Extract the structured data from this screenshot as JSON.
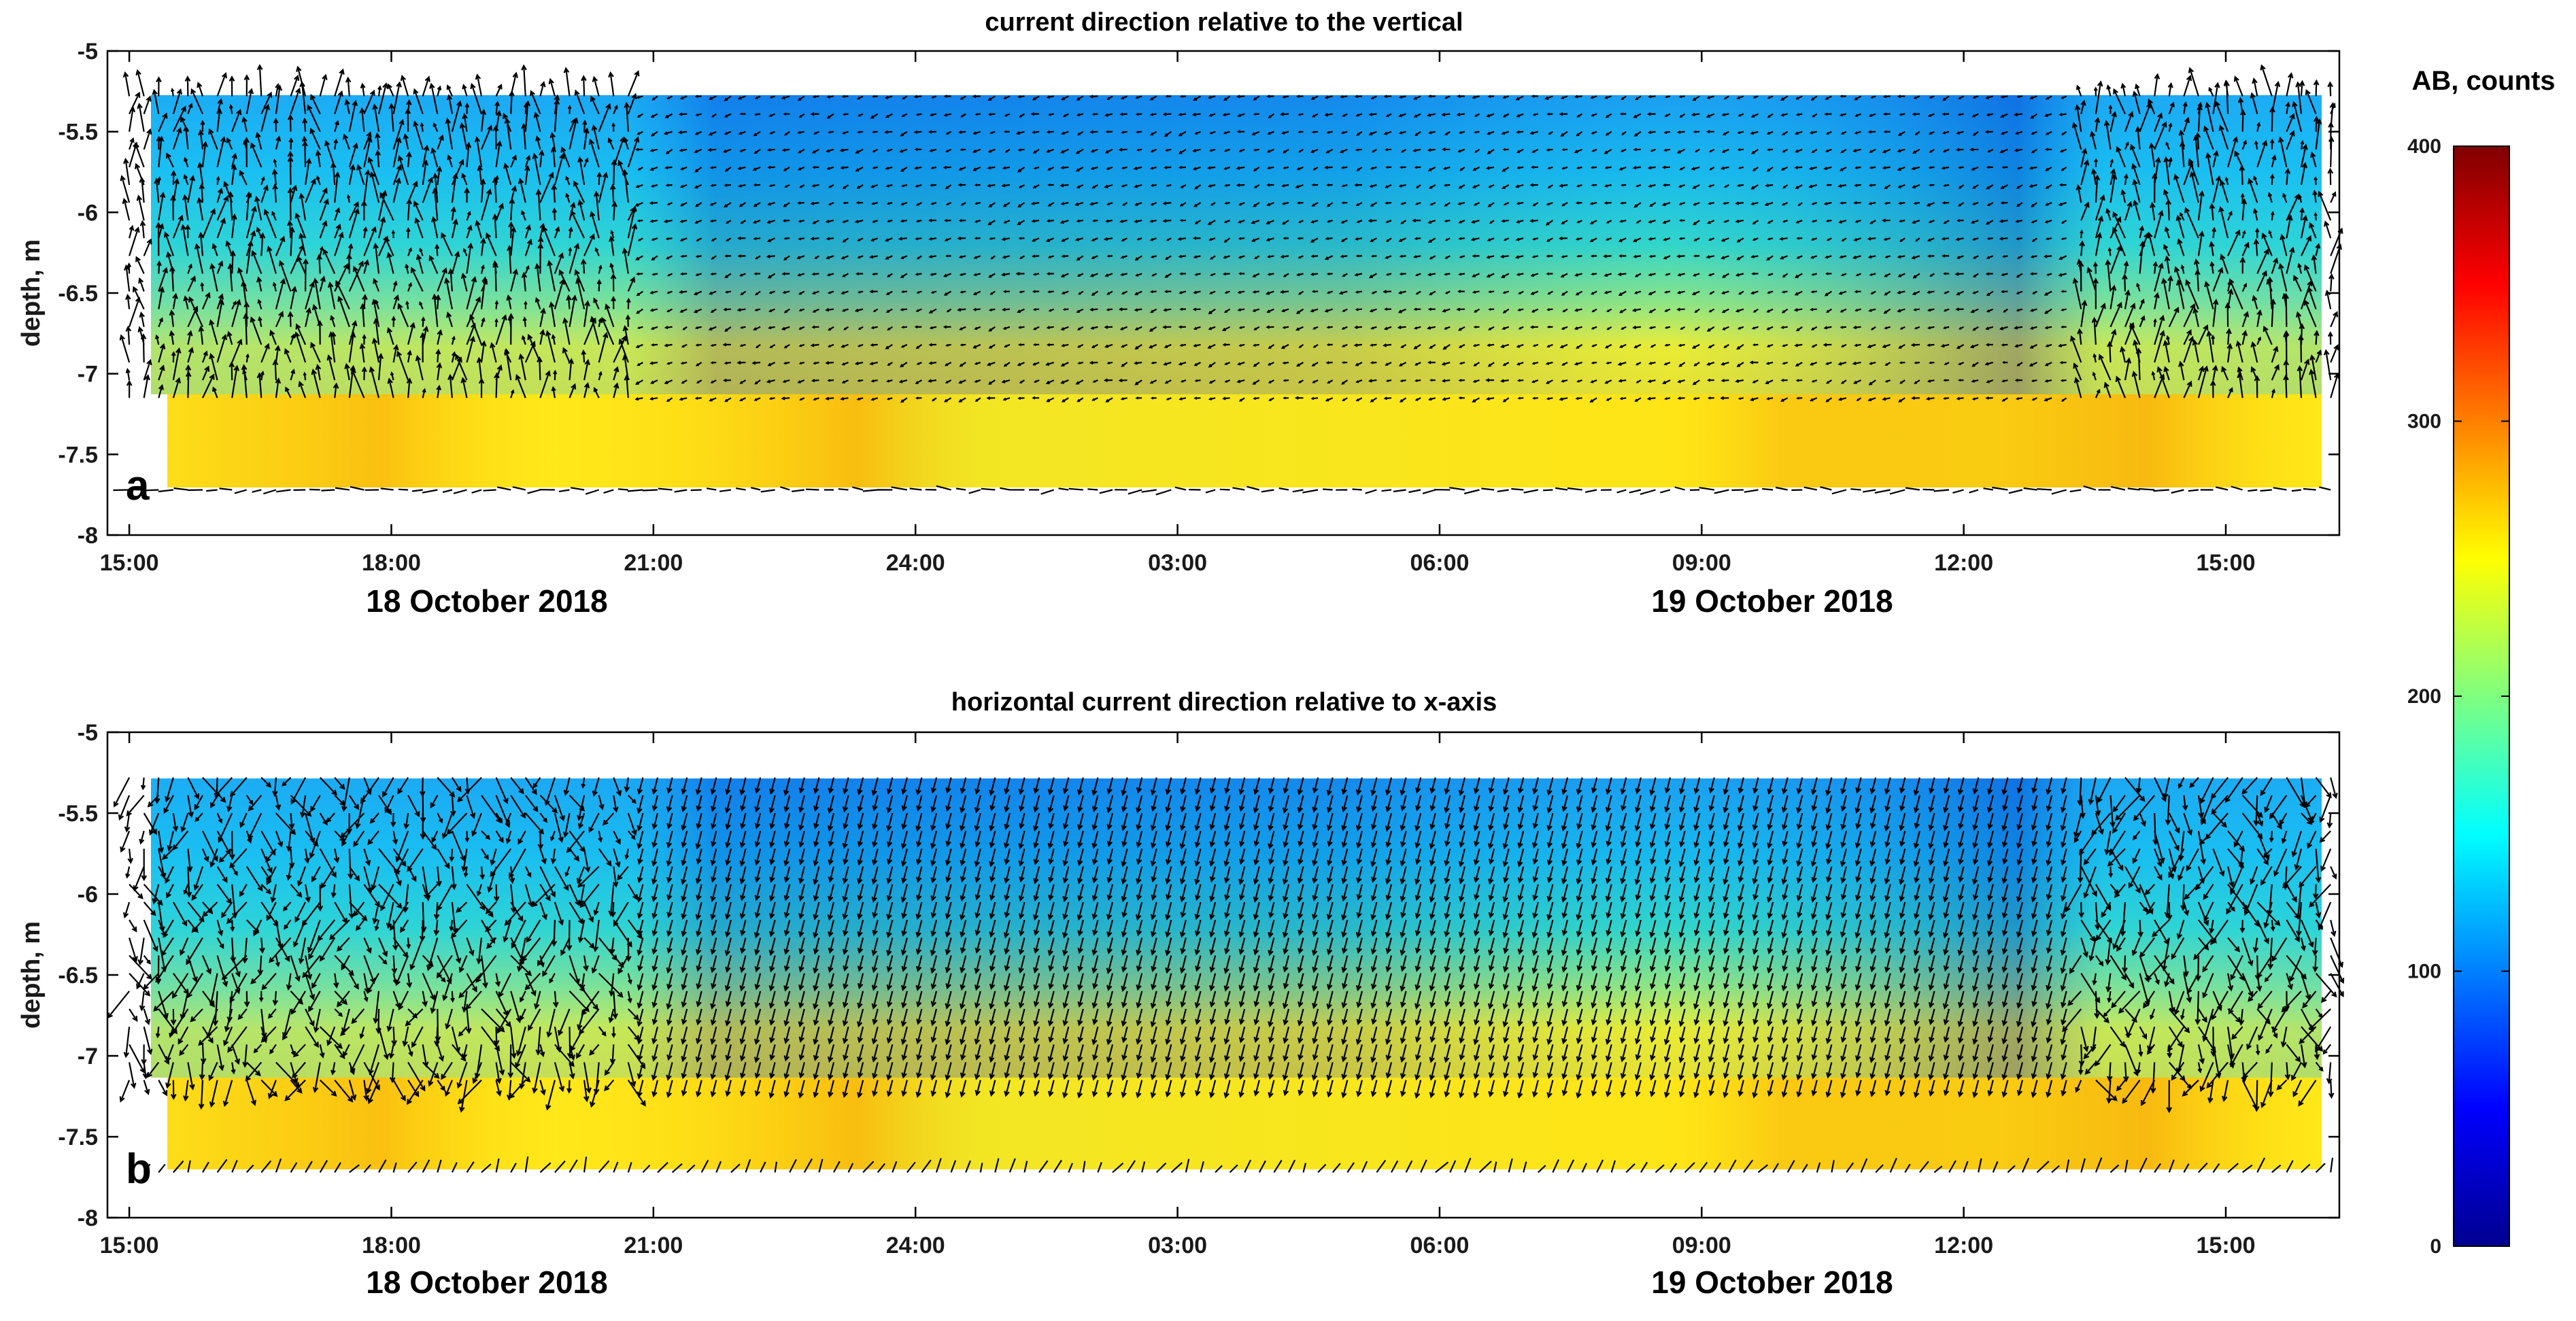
{
  "chart_data": [
    {
      "type": "heatmap",
      "panel_label": "a",
      "title": "current direction relative to the vertical",
      "ylabel": "depth, m",
      "ylim": [
        -8,
        -5
      ],
      "y_ticks": [
        "-5",
        "-5.5",
        "-6",
        "-6.5",
        "-7",
        "-7.5",
        "-8"
      ],
      "y_tick_values": [
        -5,
        -5.5,
        -6,
        -6.5,
        -7,
        -7.5,
        -8
      ],
      "x_range_hours": [
        14.75,
        40.3
      ],
      "x_ticks": [
        "15:00",
        "18:00",
        "21:00",
        "24:00",
        "03:00",
        "06:00",
        "09:00",
        "12:00",
        "15:00"
      ],
      "x_tick_hours": [
        15,
        18,
        21,
        24,
        27,
        30,
        33,
        36,
        39
      ],
      "date_labels": [
        {
          "text": "18 October 2018",
          "hour": 19
        },
        {
          "text": "19 October 2018",
          "hour": 34
        }
      ],
      "data_extent": {
        "x_hours": [
          15.0,
          40.2
        ],
        "depth": [
          -7.72,
          -5.28
        ]
      },
      "overlay": "current direction arrows (quiver)"
    },
    {
      "type": "heatmap",
      "panel_label": "b",
      "title": "horizontal current direction relative to x-axis",
      "ylabel": "depth, m",
      "ylim": [
        -8,
        -5
      ],
      "y_ticks": [
        "-5",
        "-5.5",
        "-6",
        "-6.5",
        "-7",
        "-7.5",
        "-8"
      ],
      "y_tick_values": [
        -5,
        -5.5,
        -6,
        -6.5,
        -7,
        -7.5,
        -8
      ],
      "x_range_hours": [
        14.75,
        40.3
      ],
      "x_ticks": [
        "15:00",
        "18:00",
        "21:00",
        "24:00",
        "03:00",
        "06:00",
        "09:00",
        "12:00",
        "15:00"
      ],
      "x_tick_hours": [
        15,
        18,
        21,
        24,
        27,
        30,
        33,
        36,
        39
      ],
      "date_labels": [
        {
          "text": "18 October 2018",
          "hour": 19
        },
        {
          "text": "19 October 2018",
          "hour": 34
        }
      ],
      "data_extent": {
        "x_hours": [
          15.0,
          40.2
        ],
        "depth": [
          -7.72,
          -5.28
        ]
      },
      "overlay": "horizontal current direction arrows (quiver)"
    }
  ],
  "colorbar": {
    "title": "AB, counts",
    "range": [
      0,
      400
    ],
    "ticks": [
      "400",
      "300",
      "200",
      "100",
      "0"
    ],
    "tick_values": [
      400,
      300,
      200,
      100,
      0
    ],
    "colormap": "jet"
  }
}
